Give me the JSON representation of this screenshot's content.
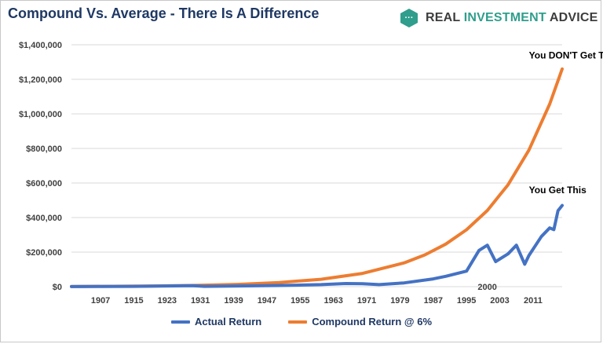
{
  "title": "Compound Vs. Average - There Is A Difference",
  "brand": {
    "prefix": "REAL ",
    "accent": "INVESTMENT",
    "suffix": " ADVICE",
    "badge_text": "···"
  },
  "colors": {
    "actual": "#4472c4",
    "compound": "#ed7d31",
    "grid": "#d9d9d9",
    "brand_badge": "#2f9e8c"
  },
  "chart_data": {
    "type": "line",
    "title": "Compound Vs. Average - There Is A Difference",
    "xlabel": "",
    "ylabel": "",
    "xlim": [
      1900,
      2018
    ],
    "ylim": [
      0,
      1400000
    ],
    "x_ticks": [
      1907,
      1915,
      1923,
      1931,
      1939,
      1947,
      1955,
      1963,
      1971,
      1979,
      1987,
      1995,
      2003,
      2011
    ],
    "y_ticks": [
      0,
      200000,
      400000,
      600000,
      800000,
      1000000,
      1200000,
      1400000
    ],
    "y_tick_labels": [
      "$0",
      "$200,000",
      "$400,000",
      "$600,000",
      "$800,000",
      "$1,000,000",
      "$1,200,000",
      "$1,400,000"
    ],
    "extra_x_labels": [
      {
        "x": 2000,
        "label": "2000"
      }
    ],
    "grid": true,
    "legend": "bottom",
    "series": [
      {
        "name": "Actual Return",
        "x": [
          1900,
          1915,
          1929,
          1932,
          1940,
          1950,
          1960,
          1966,
          1970,
          1974,
          1980,
          1987,
          1990,
          1995,
          1998,
          2000,
          2002,
          2005,
          2007,
          2009,
          2010,
          2013,
          2015,
          2016,
          2017,
          2018
        ],
        "values": [
          500,
          2000,
          6000,
          2000,
          4000,
          7000,
          12000,
          18000,
          17000,
          12000,
          22000,
          45000,
          60000,
          90000,
          210000,
          240000,
          145000,
          190000,
          240000,
          130000,
          180000,
          290000,
          340000,
          330000,
          440000,
          470000
        ]
      },
      {
        "name": "Compound Return @ 6%",
        "x": [
          1900,
          1910,
          1920,
          1930,
          1940,
          1950,
          1960,
          1970,
          1980,
          1985,
          1990,
          1995,
          2000,
          2005,
          2010,
          2015,
          2018
        ],
        "values": [
          1300,
          2330,
          4170,
          7470,
          13370,
          23950,
          42880,
          76790,
          137520,
          184030,
          246270,
          329560,
          441030,
          590200,
          789820,
          1056950,
          1260000
        ]
      }
    ],
    "annotations": [
      {
        "text": "You DON'T Get This",
        "x": 2010,
        "y": 1320000
      },
      {
        "text": "You Get This",
        "x": 2010,
        "y": 540000
      }
    ]
  }
}
